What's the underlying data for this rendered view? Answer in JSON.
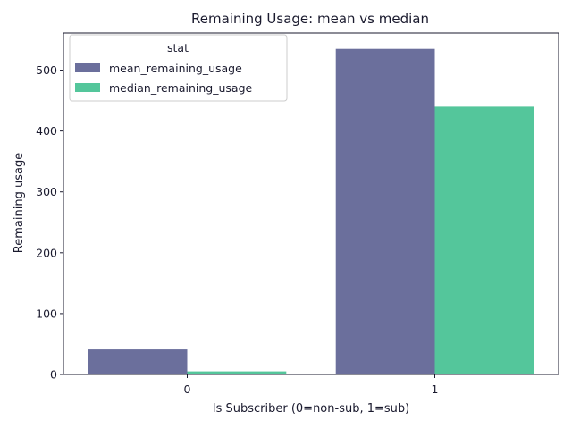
{
  "chart_data": {
    "type": "bar",
    "title": "Remaining Usage: mean vs median",
    "xlabel": "Is Subscriber (0=non-sub, 1=sub)",
    "ylabel": "Remaining usage",
    "categories": [
      "0",
      "1"
    ],
    "series": [
      {
        "name": "mean_remaining_usage",
        "values": [
          41,
          535
        ],
        "color": "#6b6f9c"
      },
      {
        "name": "median_remaining_usage",
        "values": [
          5,
          440
        ],
        "color": "#54c69b"
      }
    ],
    "ylim": [
      0,
      561
    ],
    "yticks": [
      0,
      100,
      200,
      300,
      400,
      500
    ],
    "grid": false,
    "legend": {
      "title": "stat",
      "position": "top-left"
    }
  }
}
